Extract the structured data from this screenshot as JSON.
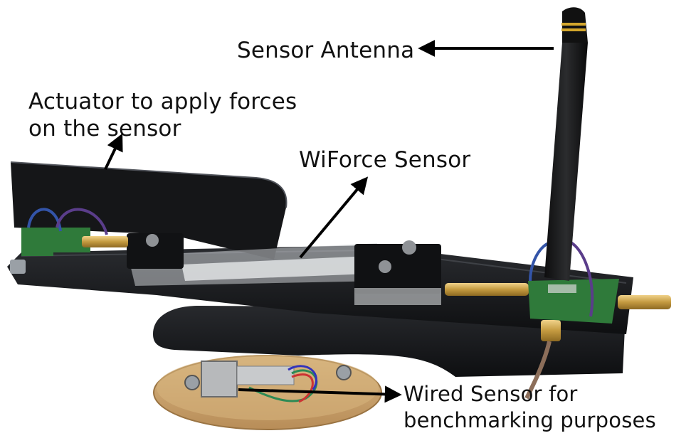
{
  "annotations": {
    "sensor_antenna": "Sensor Antenna",
    "actuator_line1": "Actuator to apply forces",
    "actuator_line2": "on the sensor",
    "wiforce_sensor": "WiForce Sensor",
    "wired_sensor_line1": "Wired Sensor for",
    "wired_sensor_line2": "benchmarking purposes"
  },
  "colors": {
    "background": "#ffffff",
    "acrylic": "#1b1c1e",
    "wood_disk": "#c8a26e",
    "pcb_green": "#2f7a3a",
    "brass": "#c9a14a",
    "arrow": "#000000",
    "antenna_band": "#d4a72c"
  }
}
